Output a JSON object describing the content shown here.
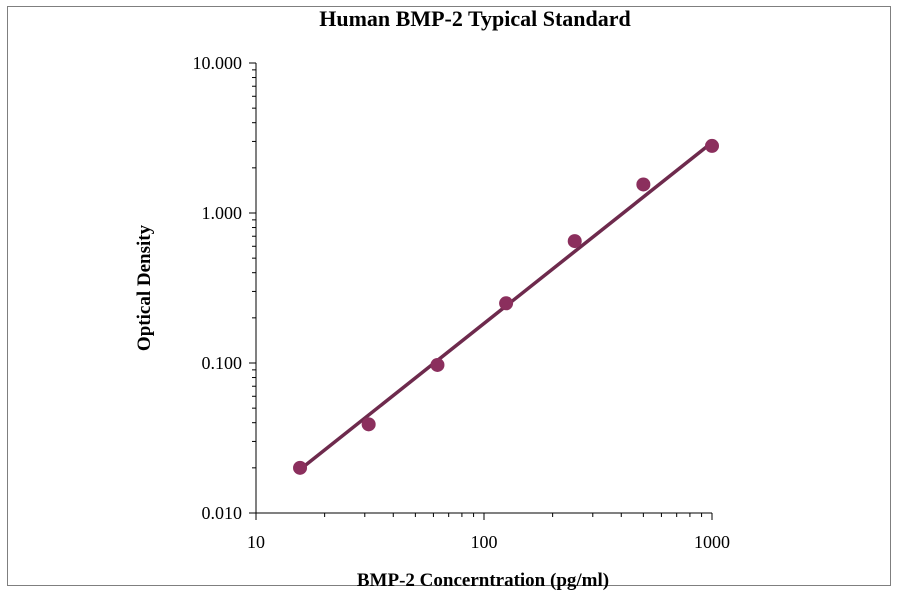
{
  "chart_data": {
    "type": "scatter",
    "title": "Human BMP-2 Typical Standard",
    "xlabel": "BMP-2 Concerntration (pg/ml)",
    "ylabel": "Optical Density",
    "x_scale": "log",
    "y_scale": "log",
    "xlim": [
      10,
      1000
    ],
    "ylim": [
      0.01,
      10
    ],
    "x_ticks": [
      "10",
      "100",
      "1000"
    ],
    "y_ticks": [
      "10.000",
      "1.000",
      "0.100",
      "0.010"
    ],
    "grid": false,
    "legend": "none",
    "series": [
      {
        "x": [
          15.6,
          31.2,
          62.5,
          125,
          250,
          500,
          1000
        ],
        "y": [
          0.02,
          0.039,
          0.097,
          0.25,
          0.65,
          1.55,
          2.8
        ]
      }
    ],
    "trendline": {
      "type": "power",
      "x_range": [
        15.6,
        1000
      ],
      "y_range": [
        0.0195,
        2.95
      ]
    },
    "colors": {
      "marker": "#8b2f5d",
      "line": "#6e2a4d",
      "axis": "#000000"
    }
  }
}
